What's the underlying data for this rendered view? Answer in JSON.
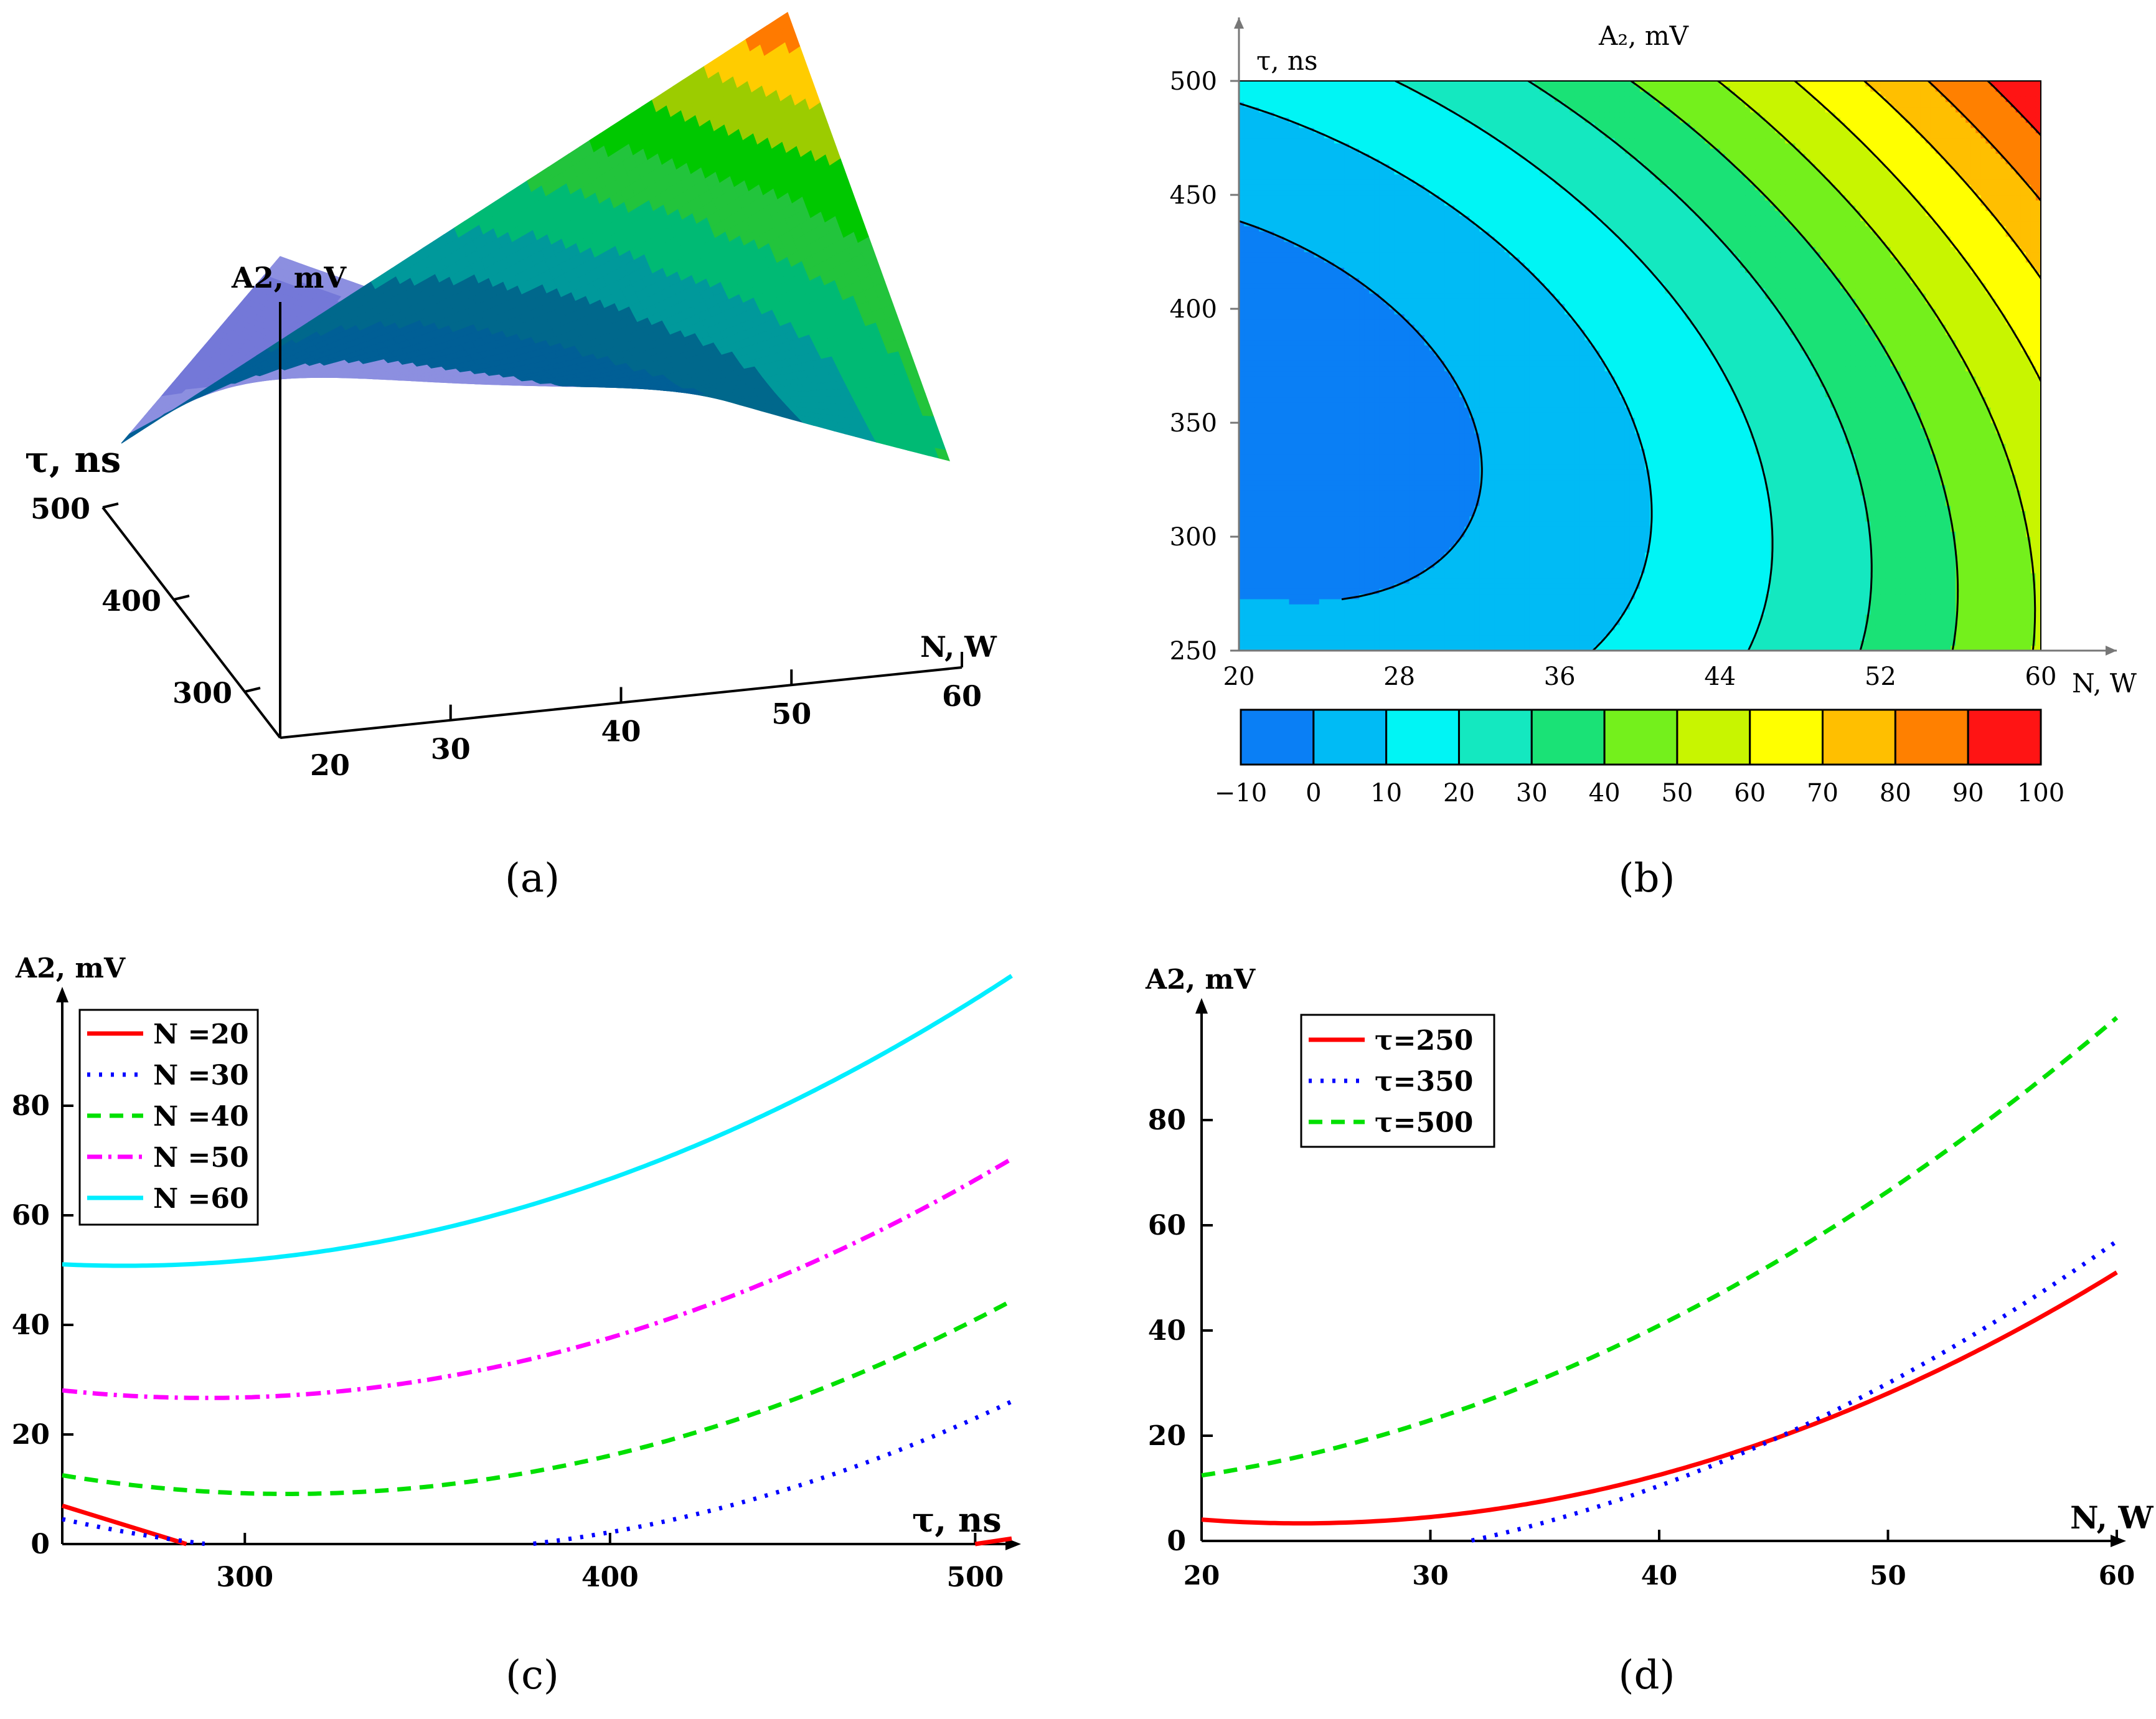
{
  "chart_data": [
    {
      "panel": "a",
      "panel_label": "(a)",
      "type": "surface3d",
      "zlabel": "A2, mV",
      "ylabel": "τ, ns",
      "xlabel": "N, W",
      "x_ticks": [
        "20",
        "30",
        "40",
        "50",
        "60"
      ],
      "y_ticks": [
        "300",
        "400",
        "500"
      ],
      "x_range": [
        20,
        60
      ],
      "y_range": [
        250,
        500
      ],
      "bands": [
        {
          "level": -10,
          "color": "#7478d8"
        },
        {
          "level": 0,
          "color": "#8c8fe0"
        },
        {
          "level": 10,
          "color": "#005f96"
        },
        {
          "level": 20,
          "color": "#00688c"
        },
        {
          "level": 30,
          "color": "#00999b"
        },
        {
          "level": 40,
          "color": "#00ba74"
        },
        {
          "level": 50,
          "color": "#22c43c"
        },
        {
          "level": 60,
          "color": "#00c800"
        },
        {
          "level": 70,
          "color": "#9ccc00"
        },
        {
          "level": 80,
          "color": "#ffcc00"
        },
        {
          "level": 90,
          "color": "#ff7a00"
        },
        {
          "level": 100,
          "color": "#ff1010"
        }
      ]
    },
    {
      "panel": "b",
      "panel_label": "(b)",
      "type": "contour",
      "title": "A₂, mV",
      "xlabel": "N, W",
      "ylabel": "τ, ns",
      "xlim": [
        20,
        60
      ],
      "ylim": [
        250,
        500
      ],
      "x_ticks": [
        "20",
        "28",
        "36",
        "44",
        "52",
        "60"
      ],
      "y_ticks": [
        "250",
        "300",
        "350",
        "400",
        "450",
        "500"
      ],
      "colorbar_levels": [
        "−10",
        "0",
        "10",
        "20",
        "30",
        "40",
        "50",
        "60",
        "70",
        "80",
        "90",
        "100"
      ],
      "colorbar_colors": [
        "#0a7ff5",
        "#00bbf5",
        "#00f5f5",
        "#14e8c0",
        "#1ae276",
        "#74f01c",
        "#c8f500",
        "#ffff00",
        "#ffbf00",
        "#ff8000",
        "#ff1414"
      ],
      "contour_levels": [
        0,
        10,
        20,
        30,
        40,
        50,
        60,
        70,
        80,
        90
      ]
    },
    {
      "panel": "c",
      "panel_label": "(c)",
      "type": "line",
      "xlabel": "τ, ns",
      "ylabel": "A2, mV",
      "xlim": [
        250,
        510
      ],
      "ylim": [
        0,
        100
      ],
      "x_ticks": [
        "300",
        "400",
        "500"
      ],
      "y_ticks": [
        "0",
        "20",
        "40",
        "60",
        "80"
      ],
      "series": [
        {
          "name": "N =20",
          "N": 20,
          "color": "#ff0000",
          "dash": "solid",
          "x": [
            250,
            284,
            500,
            510
          ],
          "y": [
            7,
            0,
            0,
            1
          ]
        },
        {
          "name": "N =30",
          "N": 30,
          "color": "#0000ff",
          "dash": "dotted"
        },
        {
          "name": "N =40",
          "N": 40,
          "color": "#00e000",
          "dash": "dashed"
        },
        {
          "name": "N =50",
          "N": 50,
          "color": "#ff00ff",
          "dash": "dashdot"
        },
        {
          "name": "N =60",
          "N": 60,
          "color": "#00eeff",
          "dash": "solid"
        }
      ]
    },
    {
      "panel": "d",
      "panel_label": "(d)",
      "type": "line",
      "xlabel": "N, W",
      "ylabel": "A2, mV",
      "xlim": [
        20,
        60
      ],
      "ylim": [
        0,
        100
      ],
      "x_ticks": [
        "20",
        "30",
        "40",
        "50",
        "60"
      ],
      "y_ticks": [
        "0",
        "20",
        "40",
        "60",
        "80"
      ],
      "series": [
        {
          "name": "τ=250",
          "tau": 250,
          "color": "#ff0000",
          "dash": "solid"
        },
        {
          "name": "τ=350",
          "tau": 350,
          "color": "#0000ff",
          "dash": "dotted"
        },
        {
          "name": "τ=500",
          "tau": 500,
          "color": "#00e000",
          "dash": "dashed"
        }
      ]
    }
  ]
}
